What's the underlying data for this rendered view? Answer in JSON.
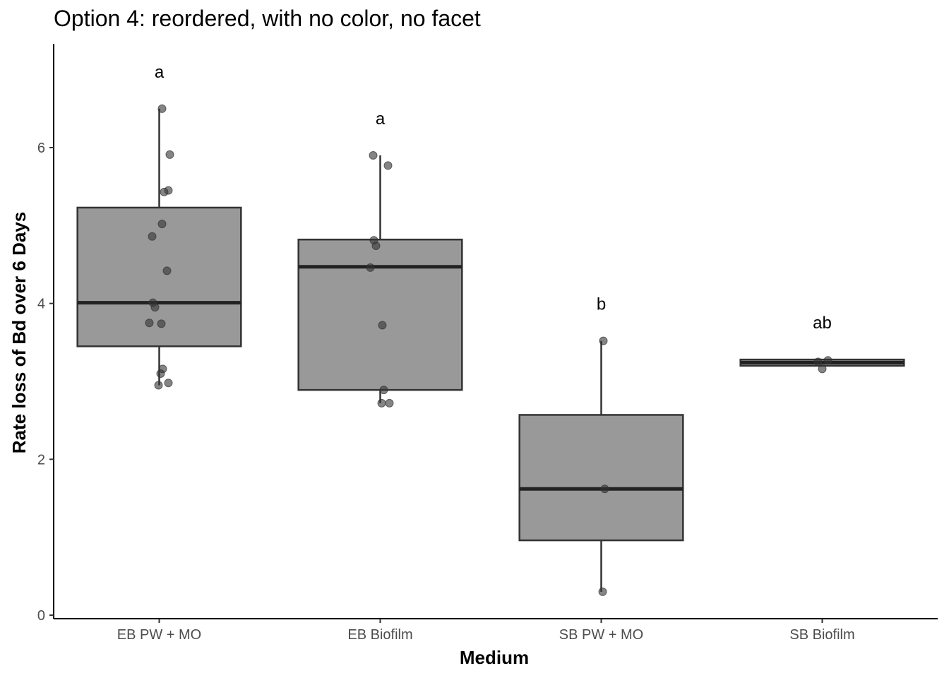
{
  "chart_data": {
    "type": "box",
    "title": "Option 4: reordered, with no color, no facet",
    "xlabel": "Medium",
    "ylabel": "Rate loss of Bd over 6 Days",
    "ylim": [
      0,
      7.3
    ],
    "yticks": [
      0,
      2,
      4,
      6
    ],
    "categories": [
      "EB PW + MO",
      "EB Biofilm",
      "SB PW + MO",
      "SB Biofilm"
    ],
    "boxes": [
      {
        "category": "EB PW + MO",
        "lower_whisker": 2.95,
        "q1": 3.45,
        "median": 4.01,
        "q3": 5.23,
        "upper_whisker": 6.5,
        "letter": "a",
        "points": [
          6.5,
          5.91,
          5.45,
          5.43,
          5.02,
          4.86,
          4.42,
          4.01,
          3.95,
          3.75,
          3.74,
          3.16,
          3.1,
          2.98,
          2.95
        ]
      },
      {
        "category": "EB Biofilm",
        "lower_whisker": 2.72,
        "q1": 2.89,
        "median": 4.47,
        "q3": 4.82,
        "upper_whisker": 5.9,
        "letter": "a",
        "points": [
          5.9,
          5.77,
          4.81,
          4.74,
          4.46,
          3.72,
          2.89,
          2.72,
          2.72
        ]
      },
      {
        "category": "SB PW + MO",
        "lower_whisker": 0.3,
        "q1": 0.96,
        "median": 1.62,
        "q3": 2.57,
        "upper_whisker": 3.52,
        "letter": "b",
        "points": [
          3.52,
          1.62,
          0.3
        ]
      },
      {
        "category": "SB Biofilm",
        "lower_whisker": 3.2,
        "q1": 3.2,
        "median": 3.24,
        "q3": 3.28,
        "upper_whisker": 3.28,
        "letter": "ab",
        "points": [
          3.27,
          3.25,
          3.16
        ]
      }
    ],
    "colors": {
      "box_fill": "#999999",
      "box_stroke": "#333333",
      "point": "#333333",
      "axis": "#000000"
    },
    "grid": false,
    "legend": "none"
  }
}
